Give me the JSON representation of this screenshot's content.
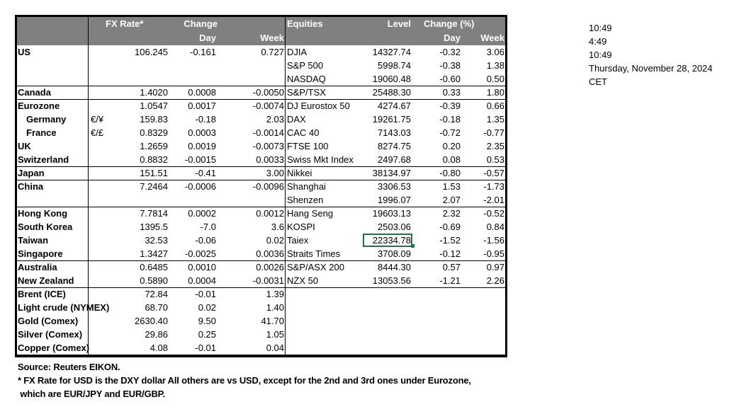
{
  "header": {
    "fx_rate": "FX Rate*",
    "change": "Change",
    "day": "Day",
    "week": "Week",
    "equities": "Equities",
    "level": "Level",
    "change_pct": "Change (%)",
    "eq_day": "Day",
    "eq_week": "Week"
  },
  "rows": [
    {
      "name": "US",
      "sym": "",
      "fx": "106.245",
      "day": "-0.161",
      "week": "0.727",
      "eq": "DJIA",
      "level": "14327.74",
      "pday": "-0.32",
      "pweek": "3.06"
    },
    {
      "name": "",
      "sym": "",
      "fx": "",
      "day": "",
      "week": "",
      "eq": "S&P 500",
      "level": "5998.74",
      "pday": "-0.38",
      "pweek": "1.38"
    },
    {
      "name": "",
      "sym": "",
      "fx": "",
      "day": "",
      "week": "",
      "eq": "NASDAQ",
      "level": "19060.48",
      "pday": "-0.60",
      "pweek": "0.50"
    },
    {
      "name": "Canada",
      "sym": "",
      "fx": "1.4020",
      "day": "0.0008",
      "week": "-0.0050",
      "eq": "S&P/TSX",
      "level": "25488.30",
      "pday": "0.33",
      "pweek": "1.80"
    },
    {
      "name": "Eurozone",
      "sym": "",
      "fx": "1.0547",
      "day": "0.0017",
      "week": "-0.0074",
      "eq": "DJ Eurostox 50",
      "level": "4274.67",
      "pday": "-0.39",
      "pweek": "0.66"
    },
    {
      "name": "Germany",
      "sym": "€/¥",
      "fx": "159.83",
      "day": "-0.18",
      "week": "2.03",
      "eq": "DAX",
      "level": "19261.75",
      "pday": "-0.18",
      "pweek": "1.35"
    },
    {
      "name": "France",
      "sym": "€/£",
      "fx": "0.8329",
      "day": "0.0003",
      "week": "-0.0014",
      "eq": "CAC 40",
      "level": "7143.03",
      "pday": "-0.72",
      "pweek": "-0.77"
    },
    {
      "name": "UK",
      "sym": "",
      "fx": "1.2659",
      "day": "0.0019",
      "week": "-0.0073",
      "eq": "FTSE 100",
      "level": "8274.75",
      "pday": "0.20",
      "pweek": "2.35"
    },
    {
      "name": "Switzerland",
      "sym": "",
      "fx": "0.8832",
      "day": "-0.0015",
      "week": "0.0033",
      "eq": "Swiss Mkt Index",
      "level": "2497.68",
      "pday": "0.08",
      "pweek": "0.53"
    },
    {
      "name": "Japan",
      "sym": "",
      "fx": "151.51",
      "day": "-0.41",
      "week": "3.00",
      "eq": "Nikkei",
      "level": "38134.97",
      "pday": "-0.80",
      "pweek": "-0.57"
    },
    {
      "name": "China",
      "sym": "",
      "fx": "7.2464",
      "day": "-0.0006",
      "week": "-0.0096",
      "eq": "Shanghai",
      "level": "3306.53",
      "pday": "1.53",
      "pweek": "-1.73"
    },
    {
      "name": "",
      "sym": "",
      "fx": "",
      "day": "",
      "week": "",
      "eq": "Shenzen",
      "level": "1996.07",
      "pday": "2.07",
      "pweek": "-2.01"
    },
    {
      "name": "Hong Kong",
      "sym": "",
      "fx": "7.7814",
      "day": "0.0002",
      "week": "0.0012",
      "eq": "Hang Seng",
      "level": "19603.13",
      "pday": "2.32",
      "pweek": "-0.52"
    },
    {
      "name": "South Korea",
      "sym": "",
      "fx": "1395.5",
      "day": "-7.0",
      "week": "3.6",
      "eq": "KOSPI",
      "level": "2503.06",
      "pday": "-0.69",
      "pweek": "0.84"
    },
    {
      "name": "Taiwan",
      "sym": "",
      "fx": "32.53",
      "day": "-0.06",
      "week": "0.02",
      "eq": "Taiex",
      "level": "22334.78",
      "pday": "-1.52",
      "pweek": "-1.56"
    },
    {
      "name": "Singapore",
      "sym": "",
      "fx": "1.3427",
      "day": "-0.0025",
      "week": "0.0036",
      "eq": "Straits Times",
      "level": "3708.09",
      "pday": "-0.12",
      "pweek": "-0.95"
    },
    {
      "name": "Australia",
      "sym": "",
      "fx": "0.6485",
      "day": "0.0010",
      "week": "0.0026",
      "eq": "S&P/ASX  200",
      "level": "8444.30",
      "pday": "0.57",
      "pweek": "0.97"
    },
    {
      "name": "New Zealand",
      "sym": "",
      "fx": "0.5890",
      "day": "0.0004",
      "week": "-0.0031",
      "eq": "NZX 50",
      "level": "13053.56",
      "pday": "-1.21",
      "pweek": "2.26"
    },
    {
      "name": "Brent (ICE)",
      "sym": "",
      "fx": "72.84",
      "day": "-0.01",
      "week": "1.39",
      "eq": "",
      "level": "",
      "pday": "",
      "pweek": ""
    },
    {
      "name": "Light crude (NYMEX)",
      "sym": "",
      "fx": "68.70",
      "day": "0.02",
      "week": "1.40",
      "eq": "",
      "level": "",
      "pday": "",
      "pweek": ""
    },
    {
      "name": "Gold (Comex)",
      "sym": "",
      "fx": "2630.40",
      "day": "9.50",
      "week": "41.70",
      "eq": "",
      "level": "",
      "pday": "",
      "pweek": ""
    },
    {
      "name": "Silver (Comex)",
      "sym": "",
      "fx": "29.86",
      "day": "0.25",
      "week": "1.05",
      "eq": "",
      "level": "",
      "pday": "",
      "pweek": ""
    },
    {
      "name": "Copper (Comex)",
      "sym": "",
      "fx": "4.08",
      "day": "-0.01",
      "week": "0.04",
      "eq": "",
      "level": "",
      "pday": "",
      "pweek": ""
    }
  ],
  "selected_cell": "Taiex level 22334.78",
  "footer": {
    "source": "Source:  Reuters EIKON.",
    "note1": "* FX Rate for USD is the DXY dollar  All others are vs USD, except for the 2nd and 3rd ones under Eurozone,",
    "note2": " which are EUR/JPY and EUR/GBP."
  },
  "side": {
    "t1": "10:49",
    "t2": "4:49",
    "t3": "10:49",
    "date": "Thursday, November 28, 2024",
    "tz": "CET"
  },
  "colors": {
    "header_bg": "#808080",
    "header_text": "#ffffff",
    "selection": "#217346"
  }
}
